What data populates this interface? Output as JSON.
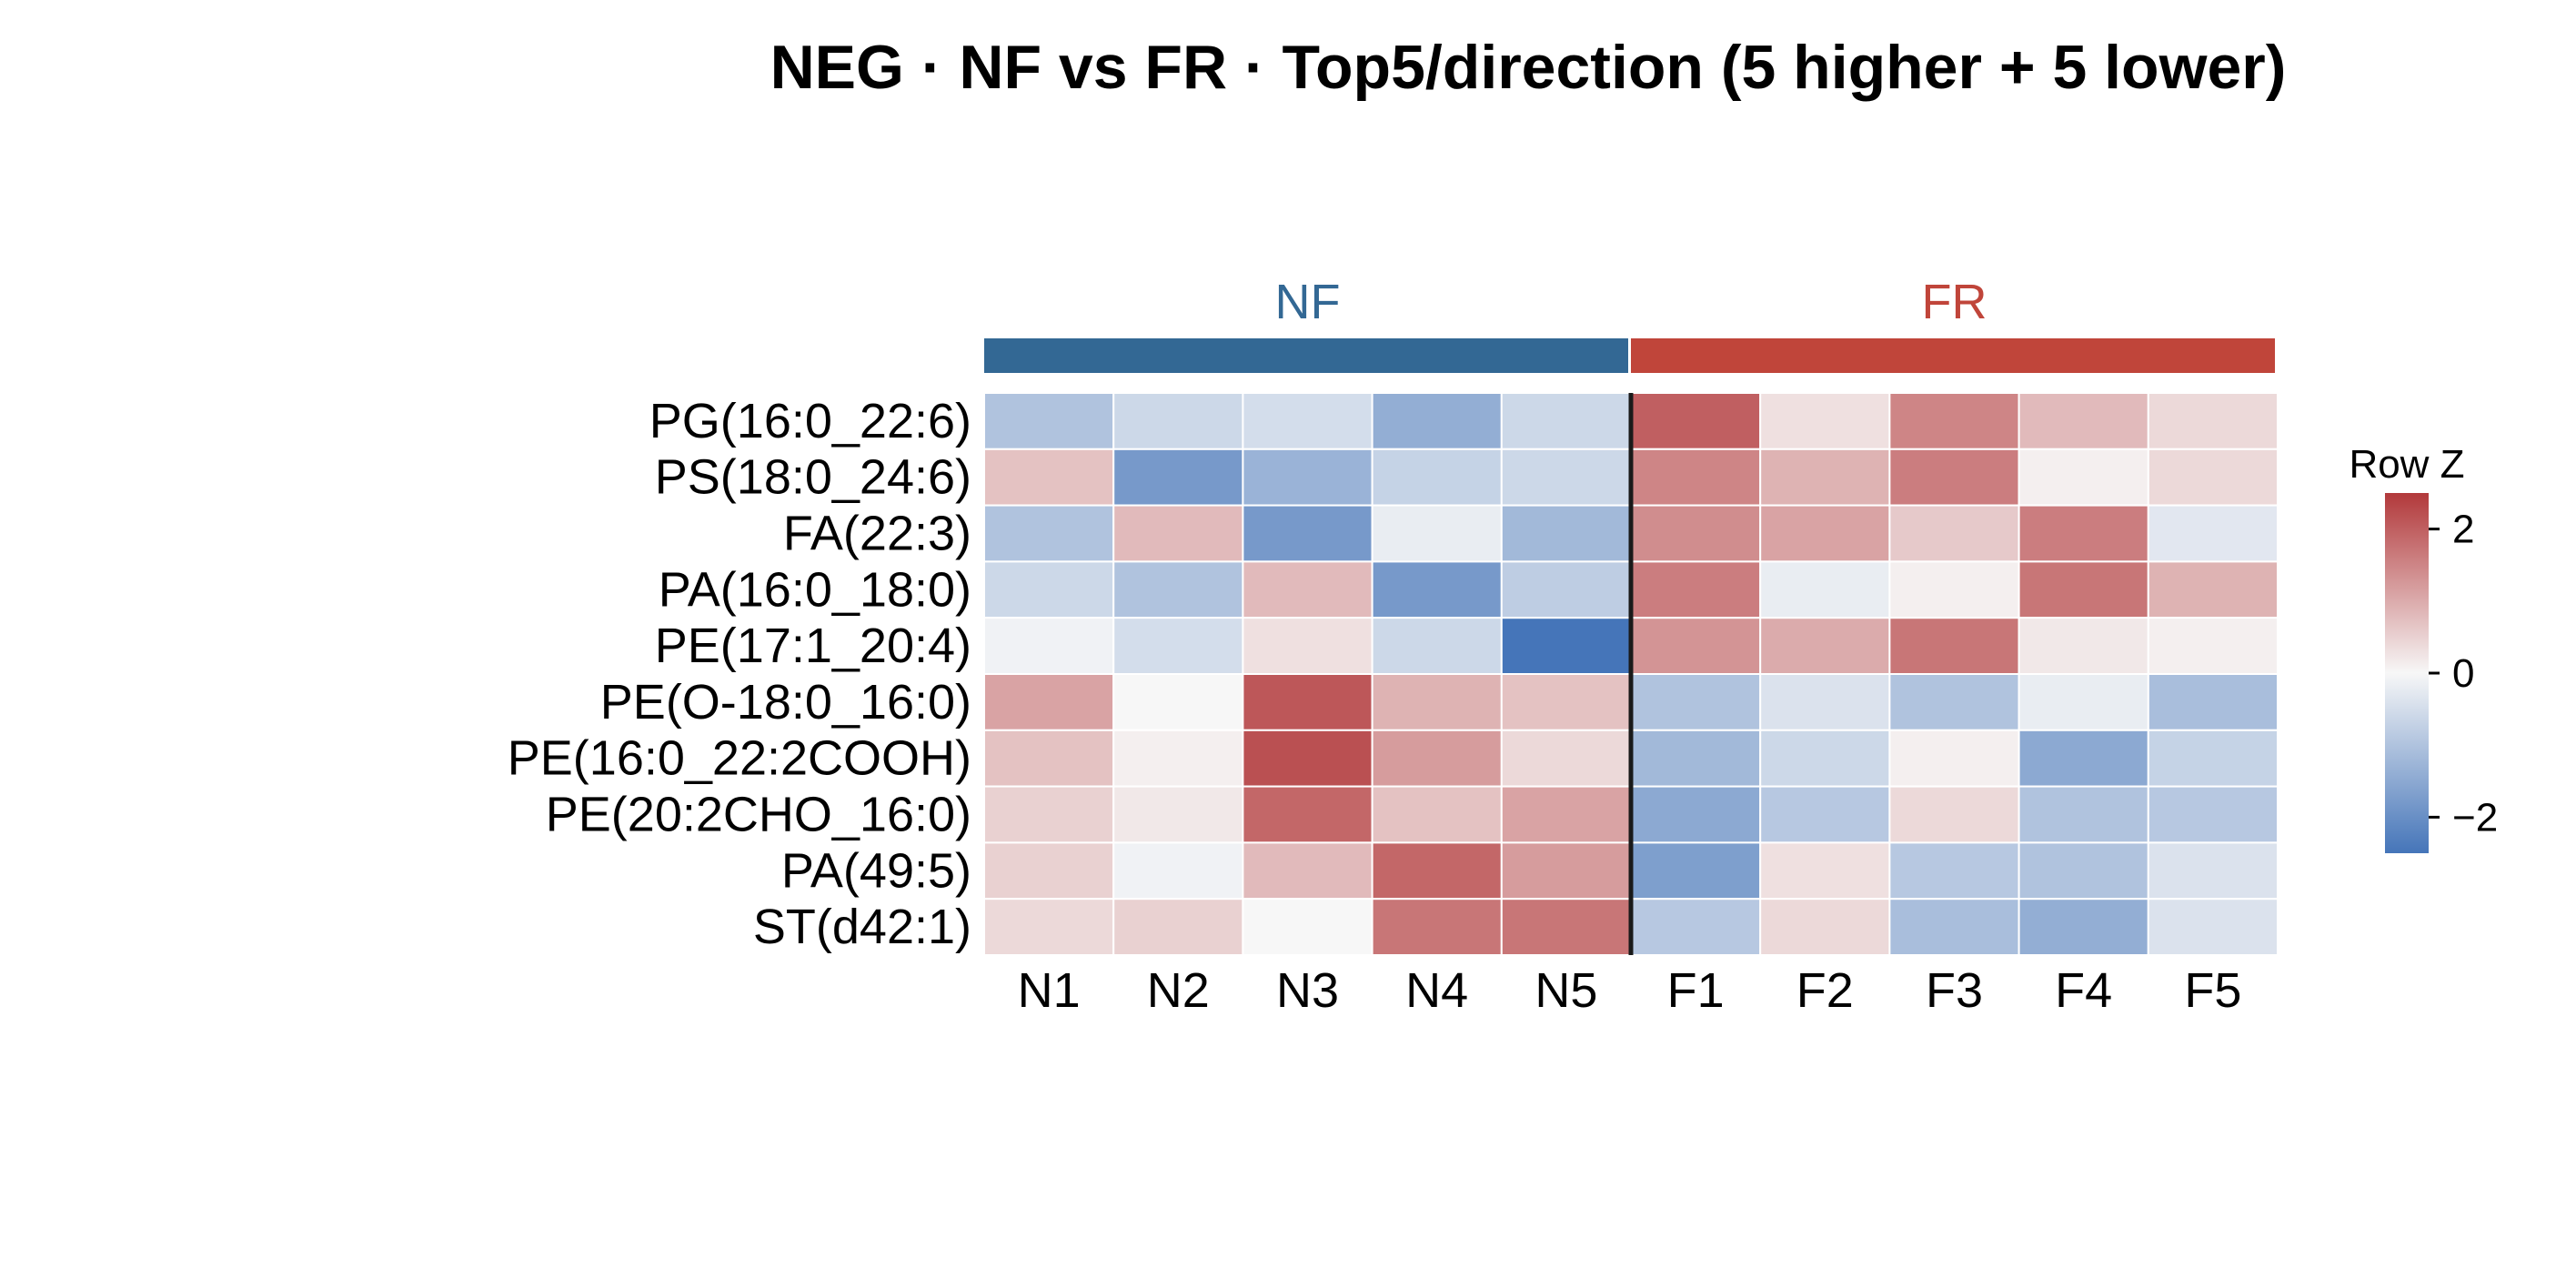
{
  "chart_data": {
    "type": "heatmap",
    "title": "NEG · NF vs FR · Top5/direction (5 higher + 5 lower)",
    "groups": [
      {
        "name": "NF",
        "color": "#336894",
        "columns": [
          "N1",
          "N2",
          "N3",
          "N4",
          "N5"
        ]
      },
      {
        "name": "FR",
        "color": "#C0453A",
        "columns": [
          "F1",
          "F2",
          "F3",
          "F4",
          "F5"
        ]
      }
    ],
    "columns": [
      "N1",
      "N2",
      "N3",
      "N4",
      "N5",
      "F1",
      "F2",
      "F3",
      "F4",
      "F5"
    ],
    "rows": [
      "PG(16:0_22:6)",
      "PS(18:0_24:6)",
      "FA(22:3)",
      "PA(16:0_18:0)",
      "PE(17:1_20:4)",
      "PE(O-18:0_16:0)",
      "PE(16:0_22:2COOH)",
      "PE(20:2CHO_16:0)",
      "PA(49:5)",
      "ST(d42:1)"
    ],
    "values": [
      [
        -1.0,
        -0.6,
        -0.5,
        -1.4,
        -0.6,
        2.0,
        0.3,
        1.5,
        0.8,
        0.4
      ],
      [
        0.7,
        -1.8,
        -1.3,
        -0.7,
        -0.6,
        1.5,
        0.9,
        1.6,
        0.1,
        0.4
      ],
      [
        -1.0,
        0.8,
        -1.8,
        -0.2,
        -1.2,
        1.4,
        1.1,
        0.6,
        1.6,
        -0.3
      ],
      [
        -0.6,
        -1.0,
        0.8,
        -1.8,
        -0.8,
        1.6,
        -0.2,
        0.1,
        1.7,
        0.9
      ],
      [
        -0.1,
        -0.5,
        0.3,
        -0.6,
        -2.5,
        1.3,
        1.0,
        1.7,
        0.2,
        0.1
      ],
      [
        1.1,
        0.0,
        2.1,
        0.9,
        0.7,
        -1.0,
        -0.4,
        -1.0,
        -0.2,
        -1.1
      ],
      [
        0.7,
        0.1,
        2.2,
        1.2,
        0.4,
        -1.2,
        -0.6,
        0.1,
        -1.5,
        -0.7
      ],
      [
        0.5,
        0.2,
        1.9,
        0.7,
        1.1,
        -1.5,
        -0.9,
        0.4,
        -1.0,
        -0.9
      ],
      [
        0.5,
        -0.1,
        0.8,
        1.9,
        1.2,
        -1.7,
        0.3,
        -0.9,
        -1.0,
        -0.4
      ],
      [
        0.4,
        0.5,
        0.0,
        1.7,
        1.7,
        -0.9,
        0.4,
        -1.1,
        -1.4,
        -0.4
      ]
    ],
    "colorbar": {
      "title": "Row Z",
      "range": [
        -2.5,
        2.5
      ],
      "ticks": [
        2,
        0,
        -2
      ],
      "tick_labels": [
        "2",
        "0",
        "−2"
      ],
      "low_color": "#4575B9",
      "mid_color": "#F7F7F7",
      "high_color": "#B2393B"
    },
    "group_separator_after_column": "N5"
  }
}
